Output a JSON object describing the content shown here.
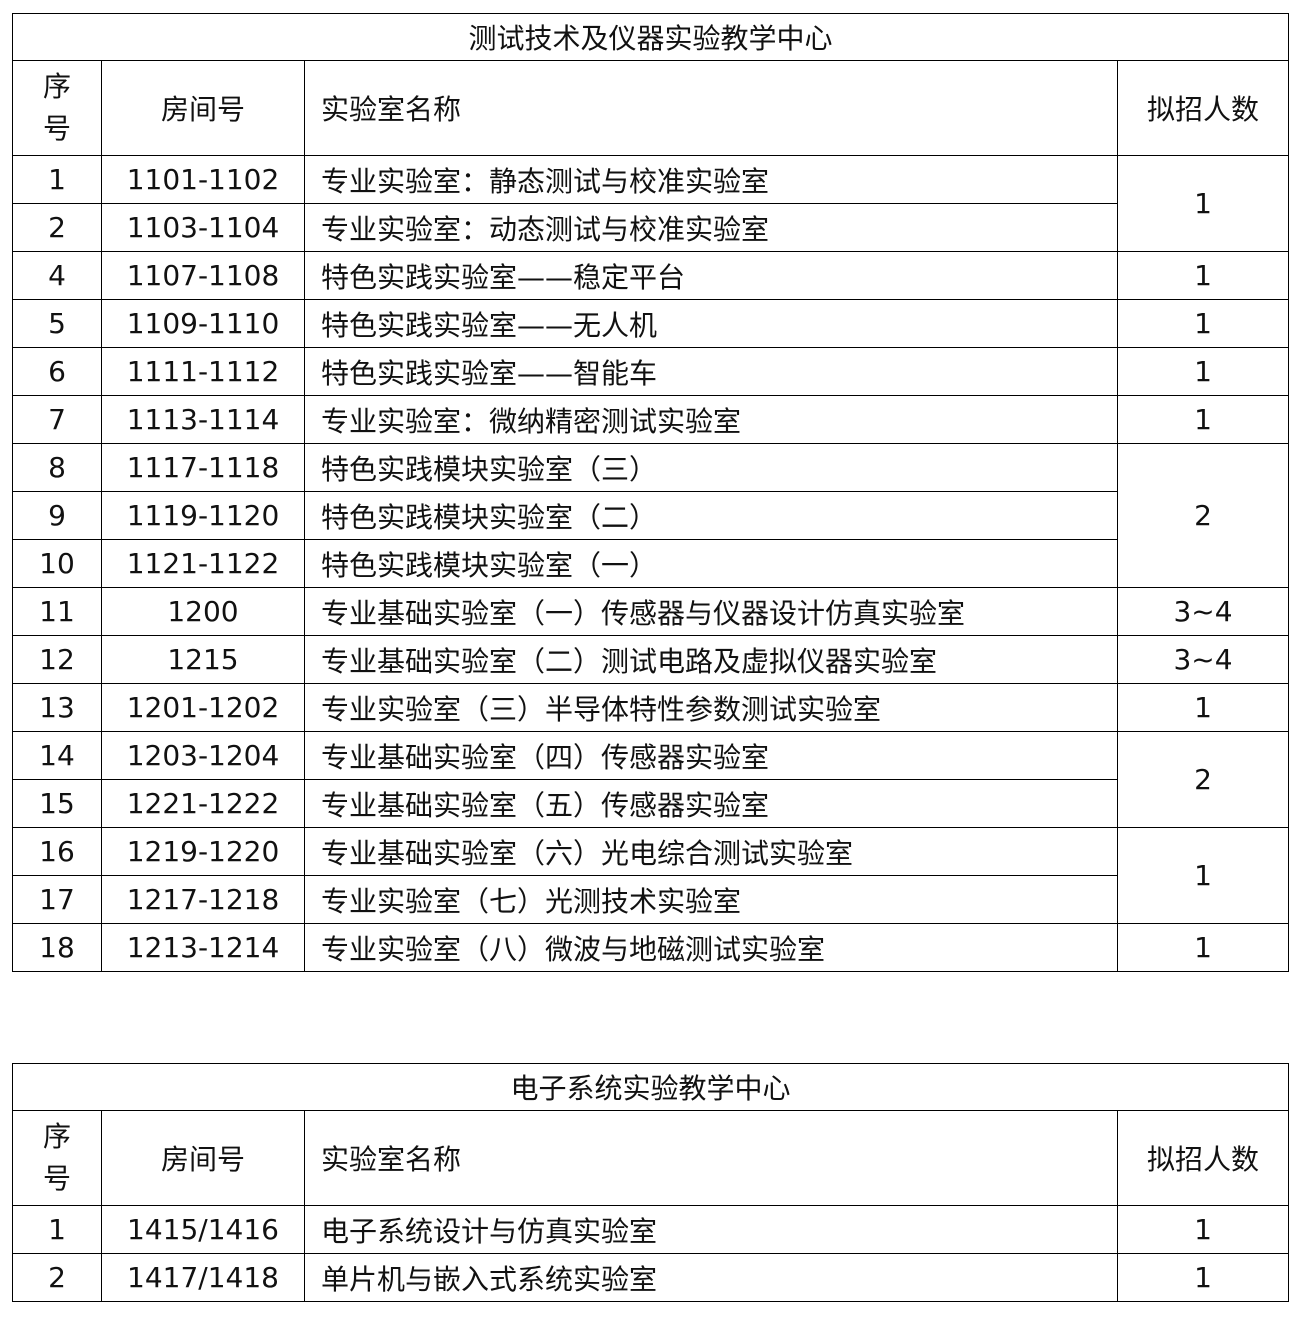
{
  "tables": [
    {
      "title": "测试技术及仪器实验教学中心",
      "headers": {
        "seq_line1": "序",
        "seq_line2": "号",
        "room": "房间号",
        "name": "实验室名称",
        "count": "拟招人数"
      },
      "groups": [
        {
          "count": "1",
          "rows": [
            {
              "seq": "1",
              "room": "1101-1102",
              "name": "专业实验室：静态测试与校准实验室"
            },
            {
              "seq": "2",
              "room": "1103-1104",
              "name": "专业实验室：动态测试与校准实验室"
            }
          ]
        },
        {
          "count": "1",
          "rows": [
            {
              "seq": "4",
              "room": "1107-1108",
              "name": "特色实践实验室——稳定平台"
            }
          ]
        },
        {
          "count": "1",
          "rows": [
            {
              "seq": "5",
              "room": "1109-1110",
              "name": "特色实践实验室——无人机"
            }
          ]
        },
        {
          "count": "1",
          "rows": [
            {
              "seq": "6",
              "room": "1111-1112",
              "name": "特色实践实验室——智能车"
            }
          ]
        },
        {
          "count": "1",
          "rows": [
            {
              "seq": "7",
              "room": "1113-1114",
              "name": "专业实验室：微纳精密测试实验室"
            }
          ]
        },
        {
          "count": "2",
          "rows": [
            {
              "seq": "8",
              "room": "1117-1118",
              "name": "特色实践模块实验室（三）"
            },
            {
              "seq": "9",
              "room": "1119-1120",
              "name": "特色实践模块实验室（二）"
            },
            {
              "seq": "10",
              "room": "1121-1122",
              "name": "特色实践模块实验室（一）"
            }
          ]
        },
        {
          "count": "3~4",
          "rows": [
            {
              "seq": "11",
              "room": "1200",
              "name": "专业基础实验室（一）传感器与仪器设计仿真实验室"
            }
          ]
        },
        {
          "count": "3~4",
          "rows": [
            {
              "seq": "12",
              "room": "1215",
              "name": "专业基础实验室（二）测试电路及虚拟仪器实验室"
            }
          ]
        },
        {
          "count": "1",
          "rows": [
            {
              "seq": "13",
              "room": "1201-1202",
              "name": "专业实验室（三）半导体特性参数测试实验室"
            }
          ]
        },
        {
          "count": "2",
          "rows": [
            {
              "seq": "14",
              "room": "1203-1204",
              "name": "专业基础实验室（四）传感器实验室"
            },
            {
              "seq": "15",
              "room": "1221-1222",
              "name": "专业基础实验室（五）传感器实验室"
            }
          ]
        },
        {
          "count": "1",
          "rows": [
            {
              "seq": "16",
              "room": "1219-1220",
              "name": "专业基础实验室（六）光电综合测试实验室"
            },
            {
              "seq": "17",
              "room": "1217-1218",
              "name": "专业实验室（七）光测技术实验室"
            }
          ]
        },
        {
          "count": "1",
          "rows": [
            {
              "seq": "18",
              "room": "1213-1214",
              "name": "专业实验室（八）微波与地磁测试实验室"
            }
          ]
        }
      ]
    },
    {
      "title": "电子系统实验教学中心",
      "headers": {
        "seq_line1": "序",
        "seq_line2": "号",
        "room": "房间号",
        "name": "实验室名称",
        "count": "拟招人数"
      },
      "groups": [
        {
          "count": "1",
          "rows": [
            {
              "seq": "1",
              "room": "1415/1416",
              "name": "电子系统设计与仿真实验室"
            }
          ]
        },
        {
          "count": "1",
          "rows": [
            {
              "seq": "2",
              "room": "1417/1418",
              "name": "单片机与嵌入式系统实验室"
            }
          ]
        }
      ]
    }
  ]
}
